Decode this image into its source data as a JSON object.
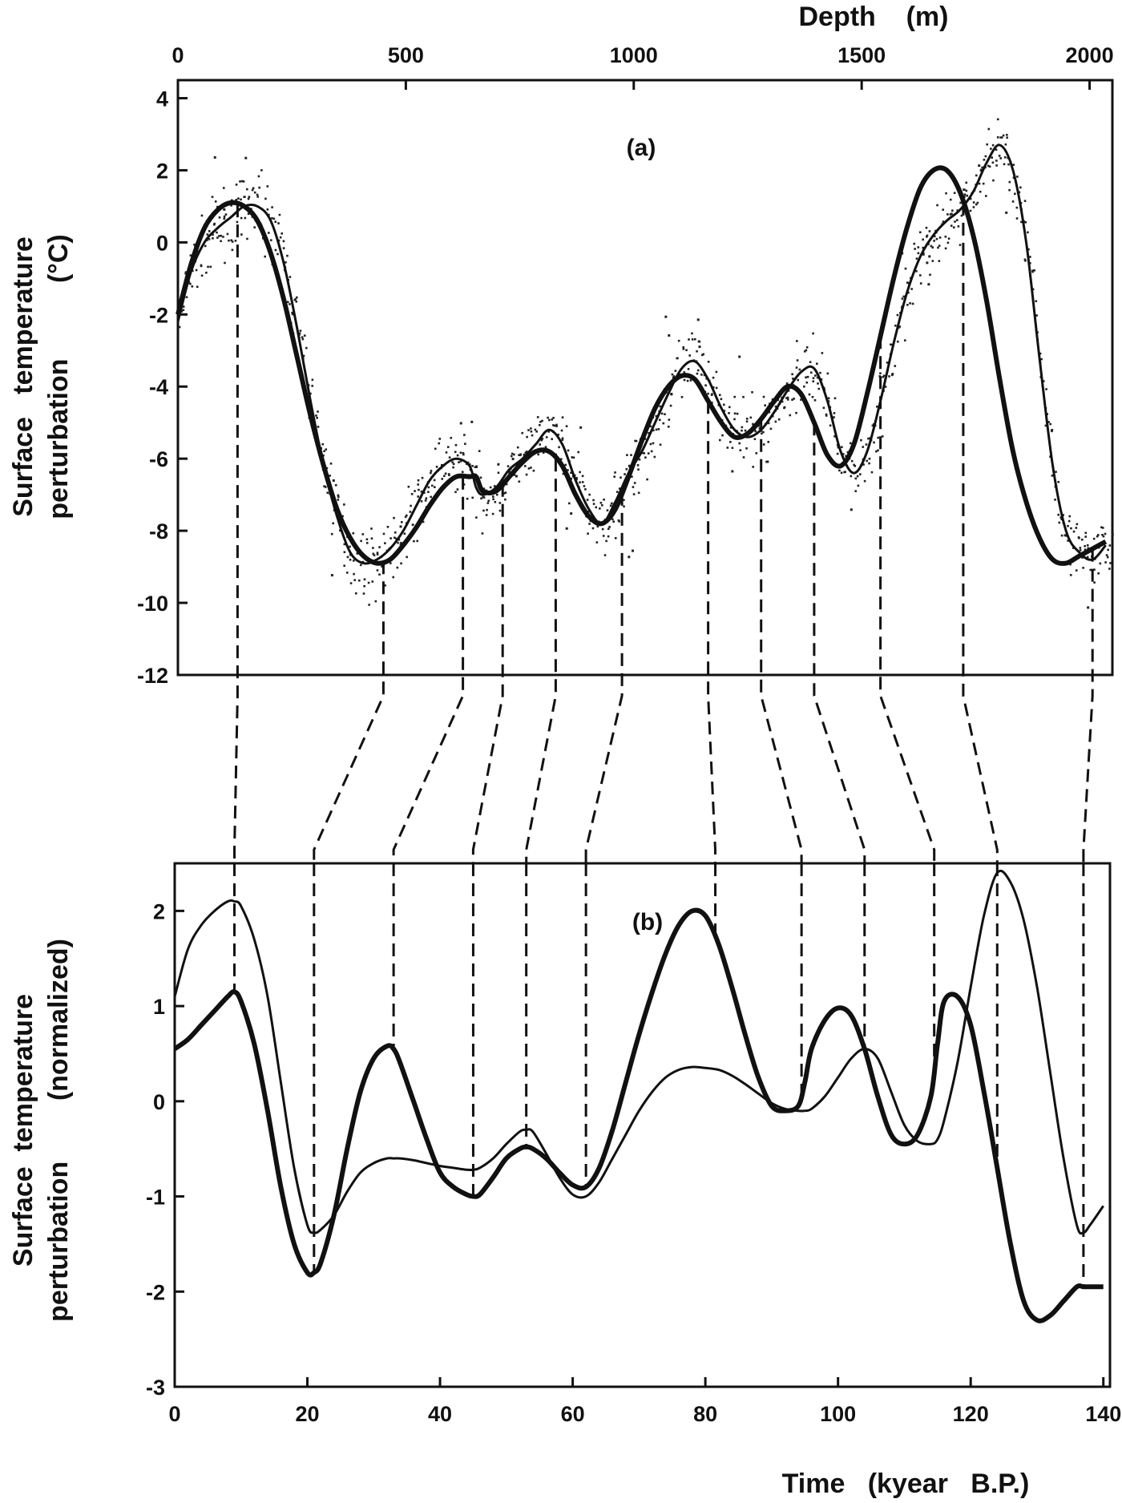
{
  "chart_data": [
    {
      "panel": "a",
      "panel_label": "(a)",
      "type": "scatter",
      "xlabel_top": "Depth    (m)",
      "ylabel_lines": [
        "Surface   temperature",
        "perturbation          (°C)"
      ],
      "x_axis_top": {
        "label": "Depth (m)",
        "range": [
          0,
          2050
        ],
        "ticks": [
          0,
          500,
          1000,
          1500,
          2000
        ]
      },
      "x_axis_bottom_kyr": {
        "range": [
          0,
          141
        ]
      },
      "ylim": [
        -12,
        4.5
      ],
      "yticks": [
        4,
        2,
        0,
        -2,
        -4,
        -6,
        -8,
        -10,
        -12
      ],
      "scatter_sets": [
        {
          "description": "depth-sampled points",
          "x_depth": [],
          "y": []
        }
      ],
      "series": [
        {
          "style": "thick",
          "x_kyr": [
            0,
            2,
            4,
            6,
            8,
            10,
            12,
            14,
            16,
            18,
            20,
            22,
            24,
            26,
            28,
            30,
            32,
            34,
            36,
            38,
            40,
            42,
            44,
            45,
            46,
            48,
            50,
            52,
            54,
            56,
            58,
            60,
            62,
            64,
            66,
            68,
            70,
            72,
            74,
            76,
            78,
            80,
            82,
            84,
            86,
            88,
            90,
            92,
            94,
            96,
            98,
            100,
            102,
            104,
            106,
            108,
            110,
            112,
            114,
            116,
            118,
            120,
            122,
            124,
            126,
            128,
            130,
            132,
            134,
            136,
            138,
            140
          ],
          "y": [
            -2.0,
            -0.6,
            0.4,
            0.9,
            1.1,
            1.0,
            0.6,
            -0.3,
            -1.6,
            -3.2,
            -4.8,
            -6.2,
            -7.4,
            -8.2,
            -8.7,
            -8.9,
            -8.8,
            -8.4,
            -7.9,
            -7.3,
            -6.8,
            -6.5,
            -6.5,
            -6.5,
            -6.9,
            -6.9,
            -6.5,
            -6.1,
            -5.8,
            -5.8,
            -6.2,
            -7.0,
            -7.6,
            -7.8,
            -7.4,
            -6.5,
            -5.5,
            -4.6,
            -4.0,
            -3.7,
            -3.8,
            -4.4,
            -5.0,
            -5.4,
            -5.3,
            -4.9,
            -4.4,
            -4.0,
            -4.2,
            -5.0,
            -5.9,
            -6.2,
            -5.6,
            -4.2,
            -2.6,
            -1.0,
            0.4,
            1.5,
            2.0,
            2.0,
            1.4,
            0.2,
            -1.6,
            -3.8,
            -5.8,
            -7.2,
            -8.2,
            -8.8,
            -8.9,
            -8.7,
            -8.5,
            -8.3
          ]
        },
        {
          "style": "thin",
          "x_kyr": [
            0,
            2,
            4,
            6,
            8,
            10,
            12,
            14,
            16,
            18,
            20,
            22,
            24,
            26,
            28,
            30,
            32,
            34,
            36,
            38,
            40,
            42,
            44,
            45,
            46,
            48,
            50,
            52,
            54,
            56,
            58,
            60,
            62,
            64,
            66,
            68,
            70,
            72,
            74,
            76,
            78,
            80,
            82,
            84,
            86,
            88,
            90,
            92,
            94,
            96,
            98,
            100,
            102,
            104,
            106,
            108,
            110,
            112,
            114,
            116,
            118,
            120,
            122,
            124,
            126,
            128,
            130,
            132,
            134,
            136,
            138,
            140
          ],
          "y": [
            -2.2,
            -0.8,
            0.0,
            0.4,
            0.7,
            1.0,
            1.0,
            0.6,
            -0.6,
            -2.4,
            -4.4,
            -6.2,
            -7.6,
            -8.6,
            -8.9,
            -8.8,
            -8.5,
            -8.0,
            -7.3,
            -6.6,
            -6.2,
            -6.0,
            -6.2,
            -6.8,
            -7.0,
            -6.8,
            -6.3,
            -6.0,
            -5.6,
            -5.2,
            -5.6,
            -6.6,
            -7.4,
            -7.8,
            -7.2,
            -6.4,
            -5.8,
            -5.0,
            -4.2,
            -3.5,
            -3.3,
            -3.8,
            -4.6,
            -5.2,
            -5.4,
            -5.2,
            -4.7,
            -4.1,
            -3.6,
            -3.5,
            -4.4,
            -5.8,
            -6.4,
            -5.8,
            -4.4,
            -2.8,
            -1.4,
            -0.4,
            0.2,
            0.6,
            0.9,
            1.4,
            2.2,
            2.7,
            2.0,
            0.0,
            -3.2,
            -6.2,
            -8.0,
            -8.6,
            -8.8,
            -8.4
          ]
        }
      ]
    },
    {
      "panel": "b",
      "panel_label": "(b)",
      "type": "line",
      "xlabel": "Time   (kyear   B.P.)",
      "ylabel_lines": [
        "Surface  temperature",
        "perturbation        (normalized)"
      ],
      "xlim": [
        0,
        141
      ],
      "xticks": [
        0,
        20,
        40,
        60,
        80,
        100,
        120,
        140
      ],
      "ylim": [
        -3,
        2.5
      ],
      "yticks": [
        2,
        1,
        0,
        -1,
        -2,
        -3
      ],
      "series": [
        {
          "style": "thick",
          "x": [
            0,
            2,
            4,
            6,
            8,
            9,
            10,
            12,
            14,
            16,
            18,
            20,
            21,
            22,
            24,
            26,
            28,
            30,
            32,
            33,
            34,
            36,
            38,
            40,
            42,
            44,
            45,
            46,
            48,
            50,
            52,
            53,
            54,
            56,
            58,
            60,
            62,
            64,
            66,
            68,
            70,
            72,
            74,
            76,
            78,
            80,
            82,
            84,
            86,
            88,
            90,
            92,
            94,
            95,
            96,
            98,
            100,
            102,
            104,
            106,
            108,
            110,
            112,
            114,
            115,
            116,
            118,
            120,
            122,
            124,
            126,
            128,
            130,
            132,
            134,
            136,
            137,
            138,
            140
          ],
          "y": [
            0.55,
            0.65,
            0.8,
            0.95,
            1.1,
            1.15,
            1.05,
            0.6,
            -0.1,
            -0.9,
            -1.5,
            -1.8,
            -1.8,
            -1.7,
            -1.2,
            -0.5,
            0.1,
            0.45,
            0.58,
            0.55,
            0.4,
            0.0,
            -0.4,
            -0.75,
            -0.9,
            -0.98,
            -1.0,
            -0.98,
            -0.8,
            -0.6,
            -0.5,
            -0.48,
            -0.5,
            -0.6,
            -0.75,
            -0.88,
            -0.9,
            -0.7,
            -0.3,
            0.2,
            0.7,
            1.15,
            1.55,
            1.85,
            2.0,
            1.95,
            1.65,
            1.2,
            0.7,
            0.25,
            -0.05,
            -0.1,
            -0.05,
            0.2,
            0.55,
            0.85,
            0.98,
            0.9,
            0.55,
            0.05,
            -0.35,
            -0.45,
            -0.35,
            0.05,
            0.6,
            1.05,
            1.1,
            0.8,
            0.1,
            -0.7,
            -1.5,
            -2.1,
            -2.3,
            -2.25,
            -2.1,
            -1.95,
            -1.95,
            -1.95,
            -1.95
          ]
        },
        {
          "style": "thin",
          "x": [
            0,
            2,
            4,
            6,
            8,
            9,
            10,
            12,
            14,
            16,
            18,
            20,
            21,
            22,
            24,
            26,
            28,
            30,
            32,
            33,
            34,
            36,
            38,
            40,
            42,
            44,
            45,
            46,
            48,
            50,
            52,
            53,
            54,
            56,
            58,
            60,
            62,
            64,
            66,
            68,
            70,
            72,
            74,
            76,
            78,
            80,
            82,
            84,
            86,
            88,
            90,
            92,
            94,
            95,
            96,
            98,
            100,
            102,
            104,
            106,
            108,
            110,
            112,
            114,
            115,
            116,
            118,
            120,
            122,
            124,
            126,
            128,
            130,
            132,
            134,
            136,
            137,
            138,
            140
          ],
          "y": [
            1.1,
            1.6,
            1.85,
            2.0,
            2.1,
            2.1,
            2.05,
            1.7,
            1.1,
            0.2,
            -0.7,
            -1.3,
            -1.38,
            -1.35,
            -1.2,
            -0.95,
            -0.75,
            -0.65,
            -0.6,
            -0.6,
            -0.6,
            -0.62,
            -0.65,
            -0.68,
            -0.7,
            -0.72,
            -0.72,
            -0.7,
            -0.6,
            -0.45,
            -0.32,
            -0.3,
            -0.32,
            -0.55,
            -0.8,
            -0.98,
            -1.0,
            -0.85,
            -0.6,
            -0.35,
            -0.1,
            0.1,
            0.25,
            0.33,
            0.36,
            0.35,
            0.33,
            0.27,
            0.18,
            0.08,
            -0.02,
            -0.08,
            -0.1,
            -0.1,
            -0.08,
            0.05,
            0.25,
            0.45,
            0.55,
            0.45,
            0.1,
            -0.25,
            -0.42,
            -0.45,
            -0.4,
            -0.2,
            0.4,
            1.2,
            1.95,
            2.4,
            2.3,
            1.9,
            1.2,
            0.3,
            -0.6,
            -1.3,
            -1.38,
            -1.3,
            -1.1
          ]
        }
      ]
    }
  ],
  "correlation_links_kyr": [
    {
      "a": 9,
      "b": 9
    },
    {
      "a": 31,
      "b": 21
    },
    {
      "a": 43,
      "b": 33
    },
    {
      "a": 49,
      "b": 45
    },
    {
      "a": 57,
      "b": 53
    },
    {
      "a": 67,
      "b": 62
    },
    {
      "a": 80,
      "b": 81.5
    },
    {
      "a": 88,
      "b": 94.5
    },
    {
      "a": 96,
      "b": 104
    },
    {
      "a": 106,
      "b": 114.5
    },
    {
      "a": 118.5,
      "b": 124
    },
    {
      "a": 138,
      "b": 137
    }
  ]
}
